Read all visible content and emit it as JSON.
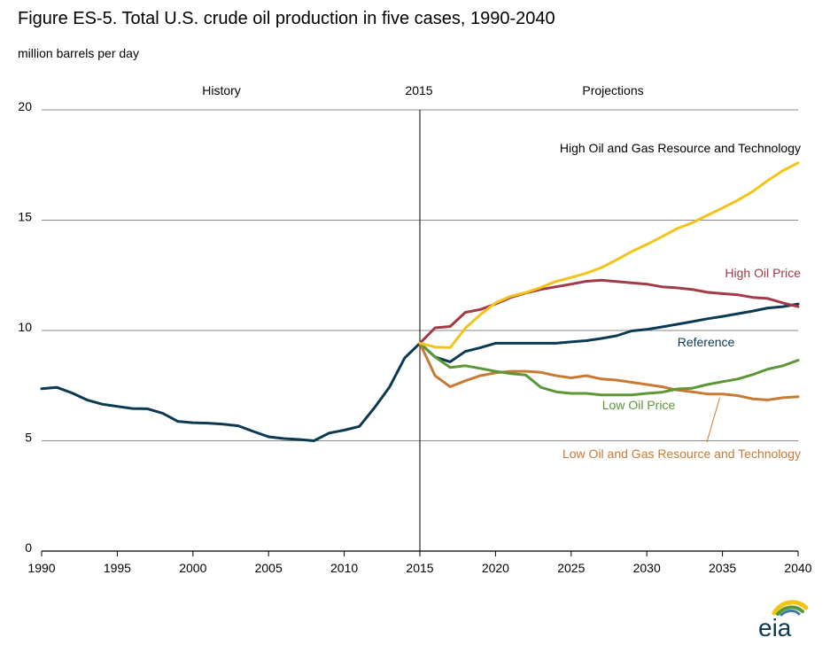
{
  "title": "Figure ES-5. Total U.S. crude oil production in five cases, 1990-2040",
  "subtitle": "million barrels per day",
  "logo_text": "eia",
  "chart_data": {
    "type": "line",
    "title": "Figure ES-5. Total U.S. crude oil production in five cases, 1990-2040",
    "ylabel": "million barrels per day",
    "xlabel": "",
    "xlim": [
      1990,
      2040
    ],
    "ylim": [
      0,
      20
    ],
    "x_ticks": [
      1990,
      1995,
      2000,
      2005,
      2010,
      2015,
      2020,
      2025,
      2030,
      2035,
      2040
    ],
    "y_ticks": [
      0,
      5,
      10,
      15,
      20
    ],
    "grid": "horizontal",
    "divider_year": 2015,
    "region_labels": {
      "history": "History",
      "divider": "2015",
      "projections": "Projections"
    },
    "series": [
      {
        "name": "Reference",
        "color": "#0b3954",
        "x": [
          1990,
          1991,
          1992,
          1993,
          1994,
          1995,
          1996,
          1997,
          1998,
          1999,
          2000,
          2001,
          2002,
          2003,
          2004,
          2005,
          2006,
          2007,
          2008,
          2009,
          2010,
          2011,
          2012,
          2013,
          2014,
          2015,
          2016,
          2017,
          2018,
          2019,
          2020,
          2021,
          2022,
          2023,
          2024,
          2025,
          2026,
          2027,
          2028,
          2029,
          2030,
          2031,
          2032,
          2033,
          2034,
          2035,
          2036,
          2037,
          2038,
          2039,
          2040
        ],
        "values": [
          7.36,
          7.42,
          7.17,
          6.85,
          6.66,
          6.56,
          6.46,
          6.45,
          6.25,
          5.88,
          5.82,
          5.8,
          5.75,
          5.68,
          5.42,
          5.18,
          5.1,
          5.06,
          5.0,
          5.35,
          5.48,
          5.65,
          6.5,
          7.44,
          8.76,
          9.42,
          8.8,
          8.58,
          9.05,
          9.22,
          9.42,
          9.42,
          9.42,
          9.42,
          9.42,
          9.48,
          9.54,
          9.64,
          9.76,
          9.98,
          10.05,
          10.16,
          10.28,
          10.4,
          10.53,
          10.64,
          10.76,
          10.88,
          11.02,
          11.08,
          11.2
        ]
      },
      {
        "name": "High Oil and Gas Resource and Technology",
        "color": "#f3c318",
        "x": [
          2015,
          2016,
          2017,
          2018,
          2019,
          2020,
          2021,
          2022,
          2023,
          2024,
          2025,
          2026,
          2027,
          2028,
          2029,
          2030,
          2031,
          2032,
          2033,
          2034,
          2035,
          2036,
          2037,
          2038,
          2039,
          2040
        ],
        "values": [
          9.42,
          9.25,
          9.22,
          10.1,
          10.72,
          11.25,
          11.55,
          11.72,
          11.95,
          12.22,
          12.4,
          12.6,
          12.85,
          13.2,
          13.58,
          13.9,
          14.25,
          14.62,
          14.88,
          15.22,
          15.55,
          15.9,
          16.3,
          16.8,
          17.25,
          17.6
        ]
      },
      {
        "name": "High Oil Price",
        "color": "#a23a48",
        "x": [
          2015,
          2016,
          2017,
          2018,
          2019,
          2020,
          2021,
          2022,
          2023,
          2024,
          2025,
          2026,
          2027,
          2028,
          2029,
          2030,
          2031,
          2032,
          2033,
          2034,
          2035,
          2036,
          2037,
          2038,
          2039,
          2040
        ],
        "values": [
          9.42,
          10.12,
          10.18,
          10.82,
          10.95,
          11.2,
          11.5,
          11.7,
          11.86,
          11.98,
          12.1,
          12.23,
          12.28,
          12.22,
          12.16,
          12.1,
          11.98,
          11.93,
          11.86,
          11.73,
          11.67,
          11.62,
          11.5,
          11.45,
          11.25,
          11.08
        ]
      },
      {
        "name": "Low Oil Price",
        "color": "#5b9735",
        "x": [
          2015,
          2016,
          2017,
          2018,
          2019,
          2020,
          2021,
          2022,
          2023,
          2024,
          2025,
          2026,
          2027,
          2028,
          2029,
          2030,
          2031,
          2032,
          2033,
          2034,
          2035,
          2036,
          2037,
          2038,
          2039,
          2040
        ],
        "values": [
          9.42,
          8.8,
          8.32,
          8.4,
          8.28,
          8.15,
          8.05,
          7.98,
          7.42,
          7.22,
          7.15,
          7.15,
          7.08,
          7.08,
          7.08,
          7.15,
          7.2,
          7.35,
          7.38,
          7.55,
          7.68,
          7.8,
          8.0,
          8.25,
          8.4,
          8.65
        ]
      },
      {
        "name": "Low Oil and Gas Resource and Technology",
        "color": "#c87a35",
        "x": [
          2015,
          2016,
          2017,
          2018,
          2019,
          2020,
          2021,
          2022,
          2023,
          2024,
          2025,
          2026,
          2027,
          2028,
          2029,
          2030,
          2031,
          2032,
          2033,
          2034,
          2035,
          2036,
          2037,
          2038,
          2039,
          2040
        ],
        "values": [
          9.42,
          7.95,
          7.45,
          7.72,
          7.95,
          8.08,
          8.15,
          8.15,
          8.1,
          7.95,
          7.85,
          7.95,
          7.8,
          7.75,
          7.65,
          7.55,
          7.45,
          7.3,
          7.22,
          7.12,
          7.12,
          7.05,
          6.9,
          6.85,
          6.95,
          7.0
        ]
      }
    ]
  }
}
